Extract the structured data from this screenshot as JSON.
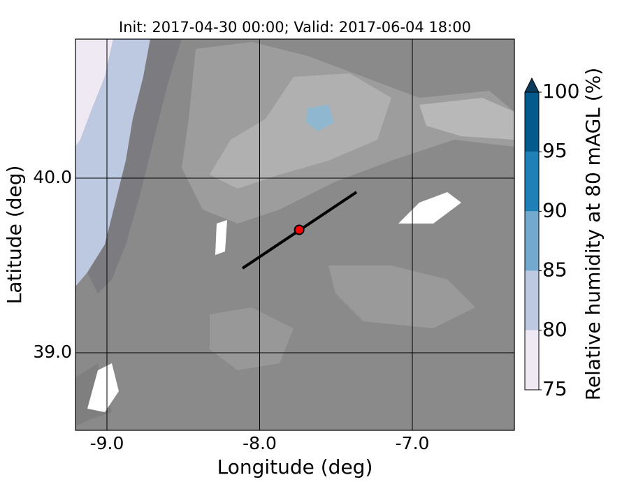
{
  "chart_data": {
    "type": "map",
    "title": "Init: 2017-04-30 00:00; Valid: 2017-06-04 18:00",
    "xlabel": "Longitude (deg)",
    "ylabel": "Latitude (deg)",
    "xlim": [
      -9.206,
      -6.332
    ],
    "ylim": [
      38.556,
      40.796
    ],
    "xticks": [
      {
        "value": -9,
        "label": "-9.0"
      },
      {
        "value": -8,
        "label": "-8.0"
      },
      {
        "value": -7,
        "label": "-7.0"
      }
    ],
    "yticks": [
      {
        "value": 39,
        "label": "39.0"
      },
      {
        "value": 40,
        "label": "40.0"
      }
    ],
    "grid": true,
    "line": {
      "x": [
        -8.112,
        -7.366
      ],
      "y": [
        39.484,
        39.92
      ],
      "color": "#000000"
    },
    "point": {
      "x": -7.741,
      "y": 39.704,
      "color": "#ff0000"
    },
    "colorbar": {
      "label": "Relative humidity at 80 mAGL (%)",
      "ticks": [
        75,
        80,
        85,
        90,
        95,
        100
      ],
      "colors": [
        "#efe9f3",
        "#bdc8e1",
        "#74a9cf",
        "#1f80b8",
        "#045a8d"
      ],
      "extend_color": "#0b3a5c"
    }
  }
}
